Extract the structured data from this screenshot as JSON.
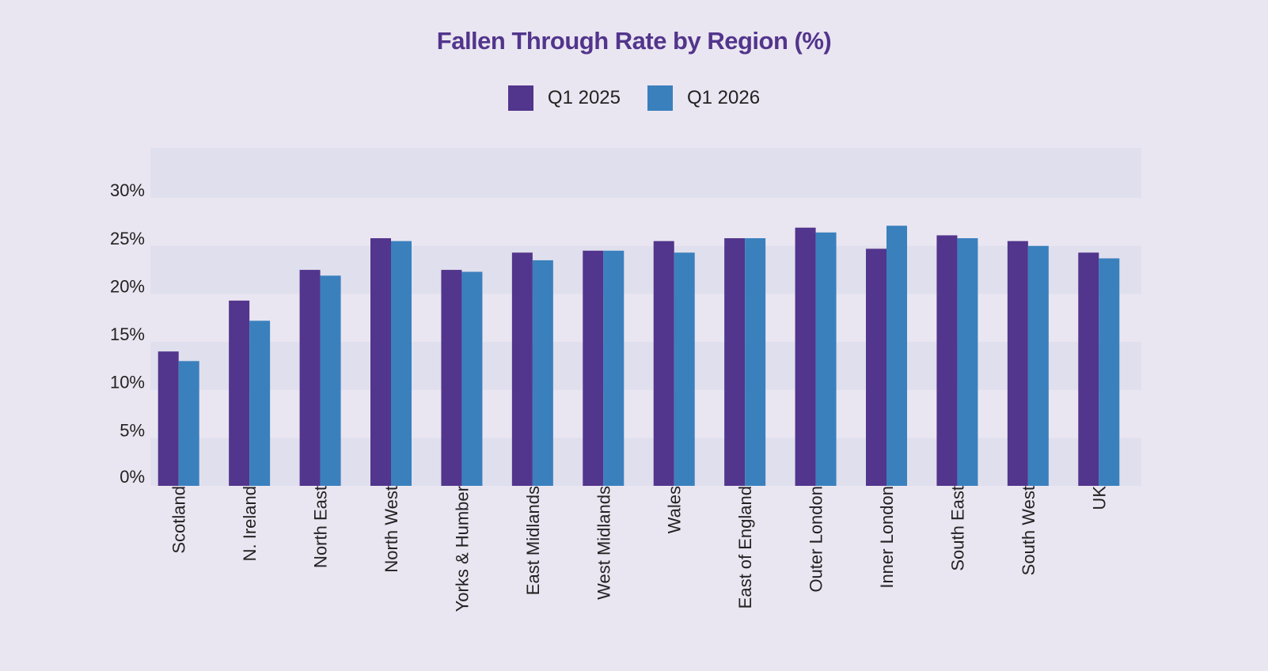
{
  "chart_data": {
    "type": "bar",
    "title": "Fallen Through Rate by Region (%)",
    "xlabel": "",
    "ylabel": "",
    "ylim": [
      0,
      35
    ],
    "yticks": [
      0,
      5,
      10,
      15,
      20,
      25,
      30
    ],
    "ytick_labels": [
      "0%",
      "5%",
      "10%",
      "15%",
      "20%",
      "25%",
      "30%"
    ],
    "grid": "alternating horizontal bands",
    "legend_position": "top-center",
    "categories": [
      "Scotland",
      "N. Ireland",
      "North East",
      "North West",
      "Yorks & Humber",
      "East Midlands",
      "West Midlands",
      "Wales",
      "East of England",
      "Outer London",
      "Inner London",
      "South East",
      "South West",
      "UK"
    ],
    "series": [
      {
        "name": "Q1 2025",
        "color": "#52358c",
        "values": [
          14.0,
          19.3,
          22.5,
          25.8,
          22.5,
          24.3,
          24.5,
          25.5,
          25.8,
          26.9,
          24.7,
          26.1,
          25.5,
          24.3
        ]
      },
      {
        "name": "Q1 2026",
        "color": "#3a80bd",
        "values": [
          13.0,
          17.2,
          21.9,
          25.5,
          22.3,
          23.5,
          24.5,
          24.3,
          25.8,
          26.4,
          27.1,
          25.8,
          25.0,
          23.7
        ]
      }
    ]
  }
}
